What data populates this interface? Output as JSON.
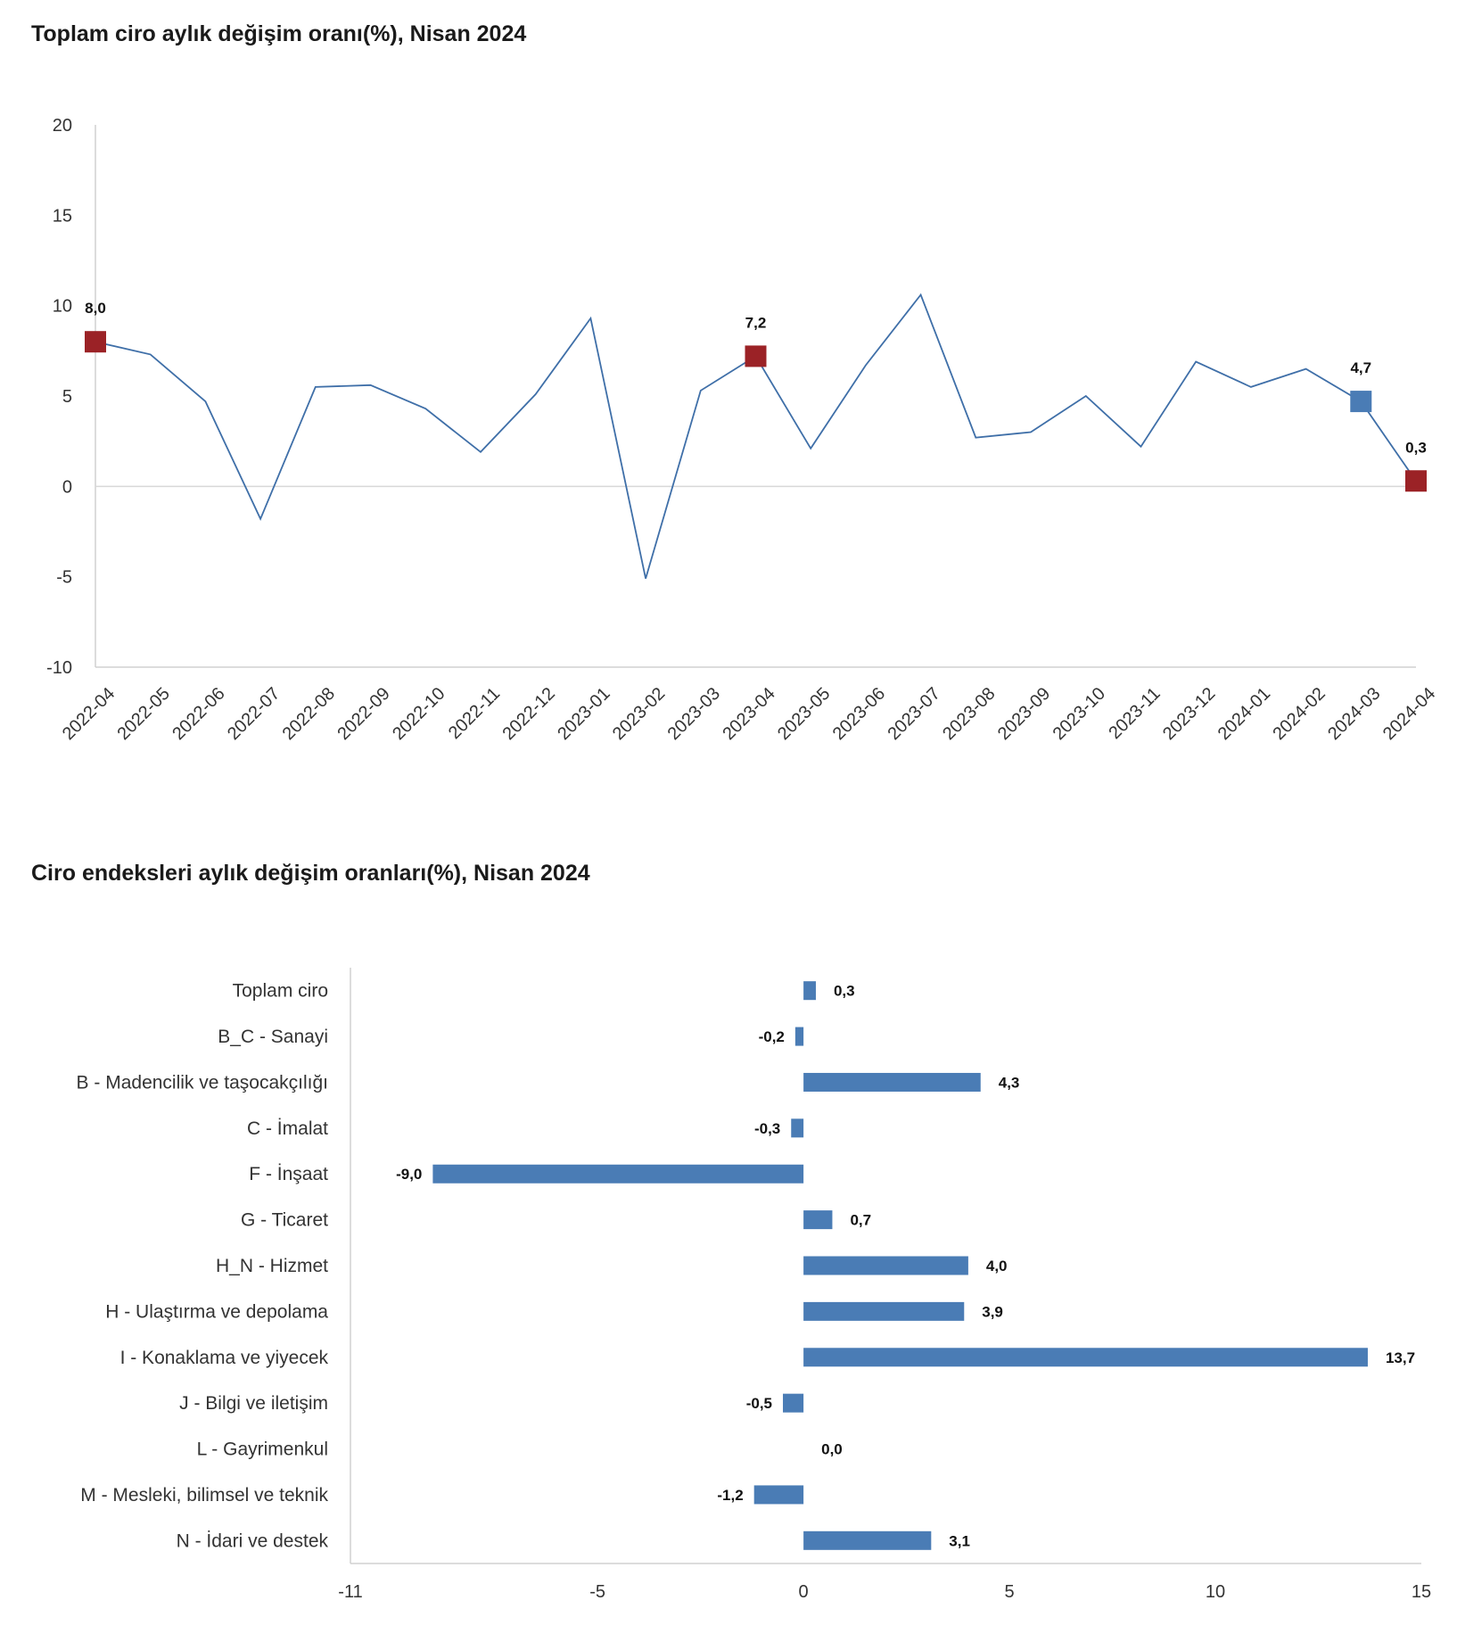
{
  "chart_data": [
    {
      "type": "line",
      "title": "Toplam ciro aylık değişim oranı(%), Nisan 2024",
      "x": [
        "2022-04",
        "2022-05",
        "2022-06",
        "2022-07",
        "2022-08",
        "2022-09",
        "2022-10",
        "2022-11",
        "2022-12",
        "2023-01",
        "2023-02",
        "2023-03",
        "2023-04",
        "2023-05",
        "2023-06",
        "2023-07",
        "2023-08",
        "2023-09",
        "2023-10",
        "2023-11",
        "2023-12",
        "2024-01",
        "2024-02",
        "2024-03",
        "2024-04"
      ],
      "series": [
        {
          "values": [
            8.0,
            7.3,
            4.7,
            -1.8,
            5.5,
            5.6,
            4.3,
            1.9,
            5.1,
            9.3,
            -5.1,
            5.3,
            7.2,
            2.1,
            6.7,
            10.6,
            2.7,
            3.0,
            5.0,
            2.2,
            6.9,
            5.5,
            6.5,
            4.7,
            0.3
          ]
        }
      ],
      "highlighted_points": [
        {
          "index": 0,
          "label": "8,0",
          "color": "#9b2226"
        },
        {
          "index": 12,
          "label": "7,2",
          "color": "#9b2226"
        },
        {
          "index": 23,
          "label": "4,7",
          "color": "#4a7cb5"
        },
        {
          "index": 24,
          "label": "0,3",
          "color": "#9b2226"
        }
      ],
      "yticks": [
        "20",
        "15",
        "10",
        "5",
        "0",
        "-5",
        "-10"
      ],
      "ylim": [
        -10,
        20
      ],
      "line_color": "#3f6fa8",
      "grid": false
    },
    {
      "type": "bar",
      "orientation": "horizontal",
      "title": "Ciro endeksleri aylık değişim oranları(%), Nisan 2024",
      "categories": [
        "Toplam ciro",
        "B_C - Sanayi",
        "B - Madencilik ve taşocakçılığı",
        "C - İmalat",
        "F - İnşaat",
        "G - Ticaret",
        "H_N - Hizmet",
        "H - Ulaştırma ve depolama",
        "I - Konaklama ve yiyecek",
        "J - Bilgi ve iletişim",
        "L - Gayrimenkul",
        "M - Mesleki, bilimsel ve teknik",
        "N - İdari ve destek"
      ],
      "values": [
        0.3,
        -0.2,
        4.3,
        -0.3,
        -9.0,
        0.7,
        4.0,
        3.9,
        13.7,
        -0.5,
        0.0,
        -1.2,
        3.1
      ],
      "value_labels": [
        "0,3",
        "-0,2",
        "4,3",
        "-0,3",
        "-9,0",
        "0,7",
        "4,0",
        "3,9",
        "13,7",
        "-0,5",
        "0,0",
        "-1,2",
        "3,1"
      ],
      "xticks": [
        "-11",
        "-5",
        "0",
        "5",
        "10",
        "15"
      ],
      "xlim": [
        -11,
        15
      ],
      "bar_color": "#4a7cb5",
      "grid": false
    }
  ]
}
